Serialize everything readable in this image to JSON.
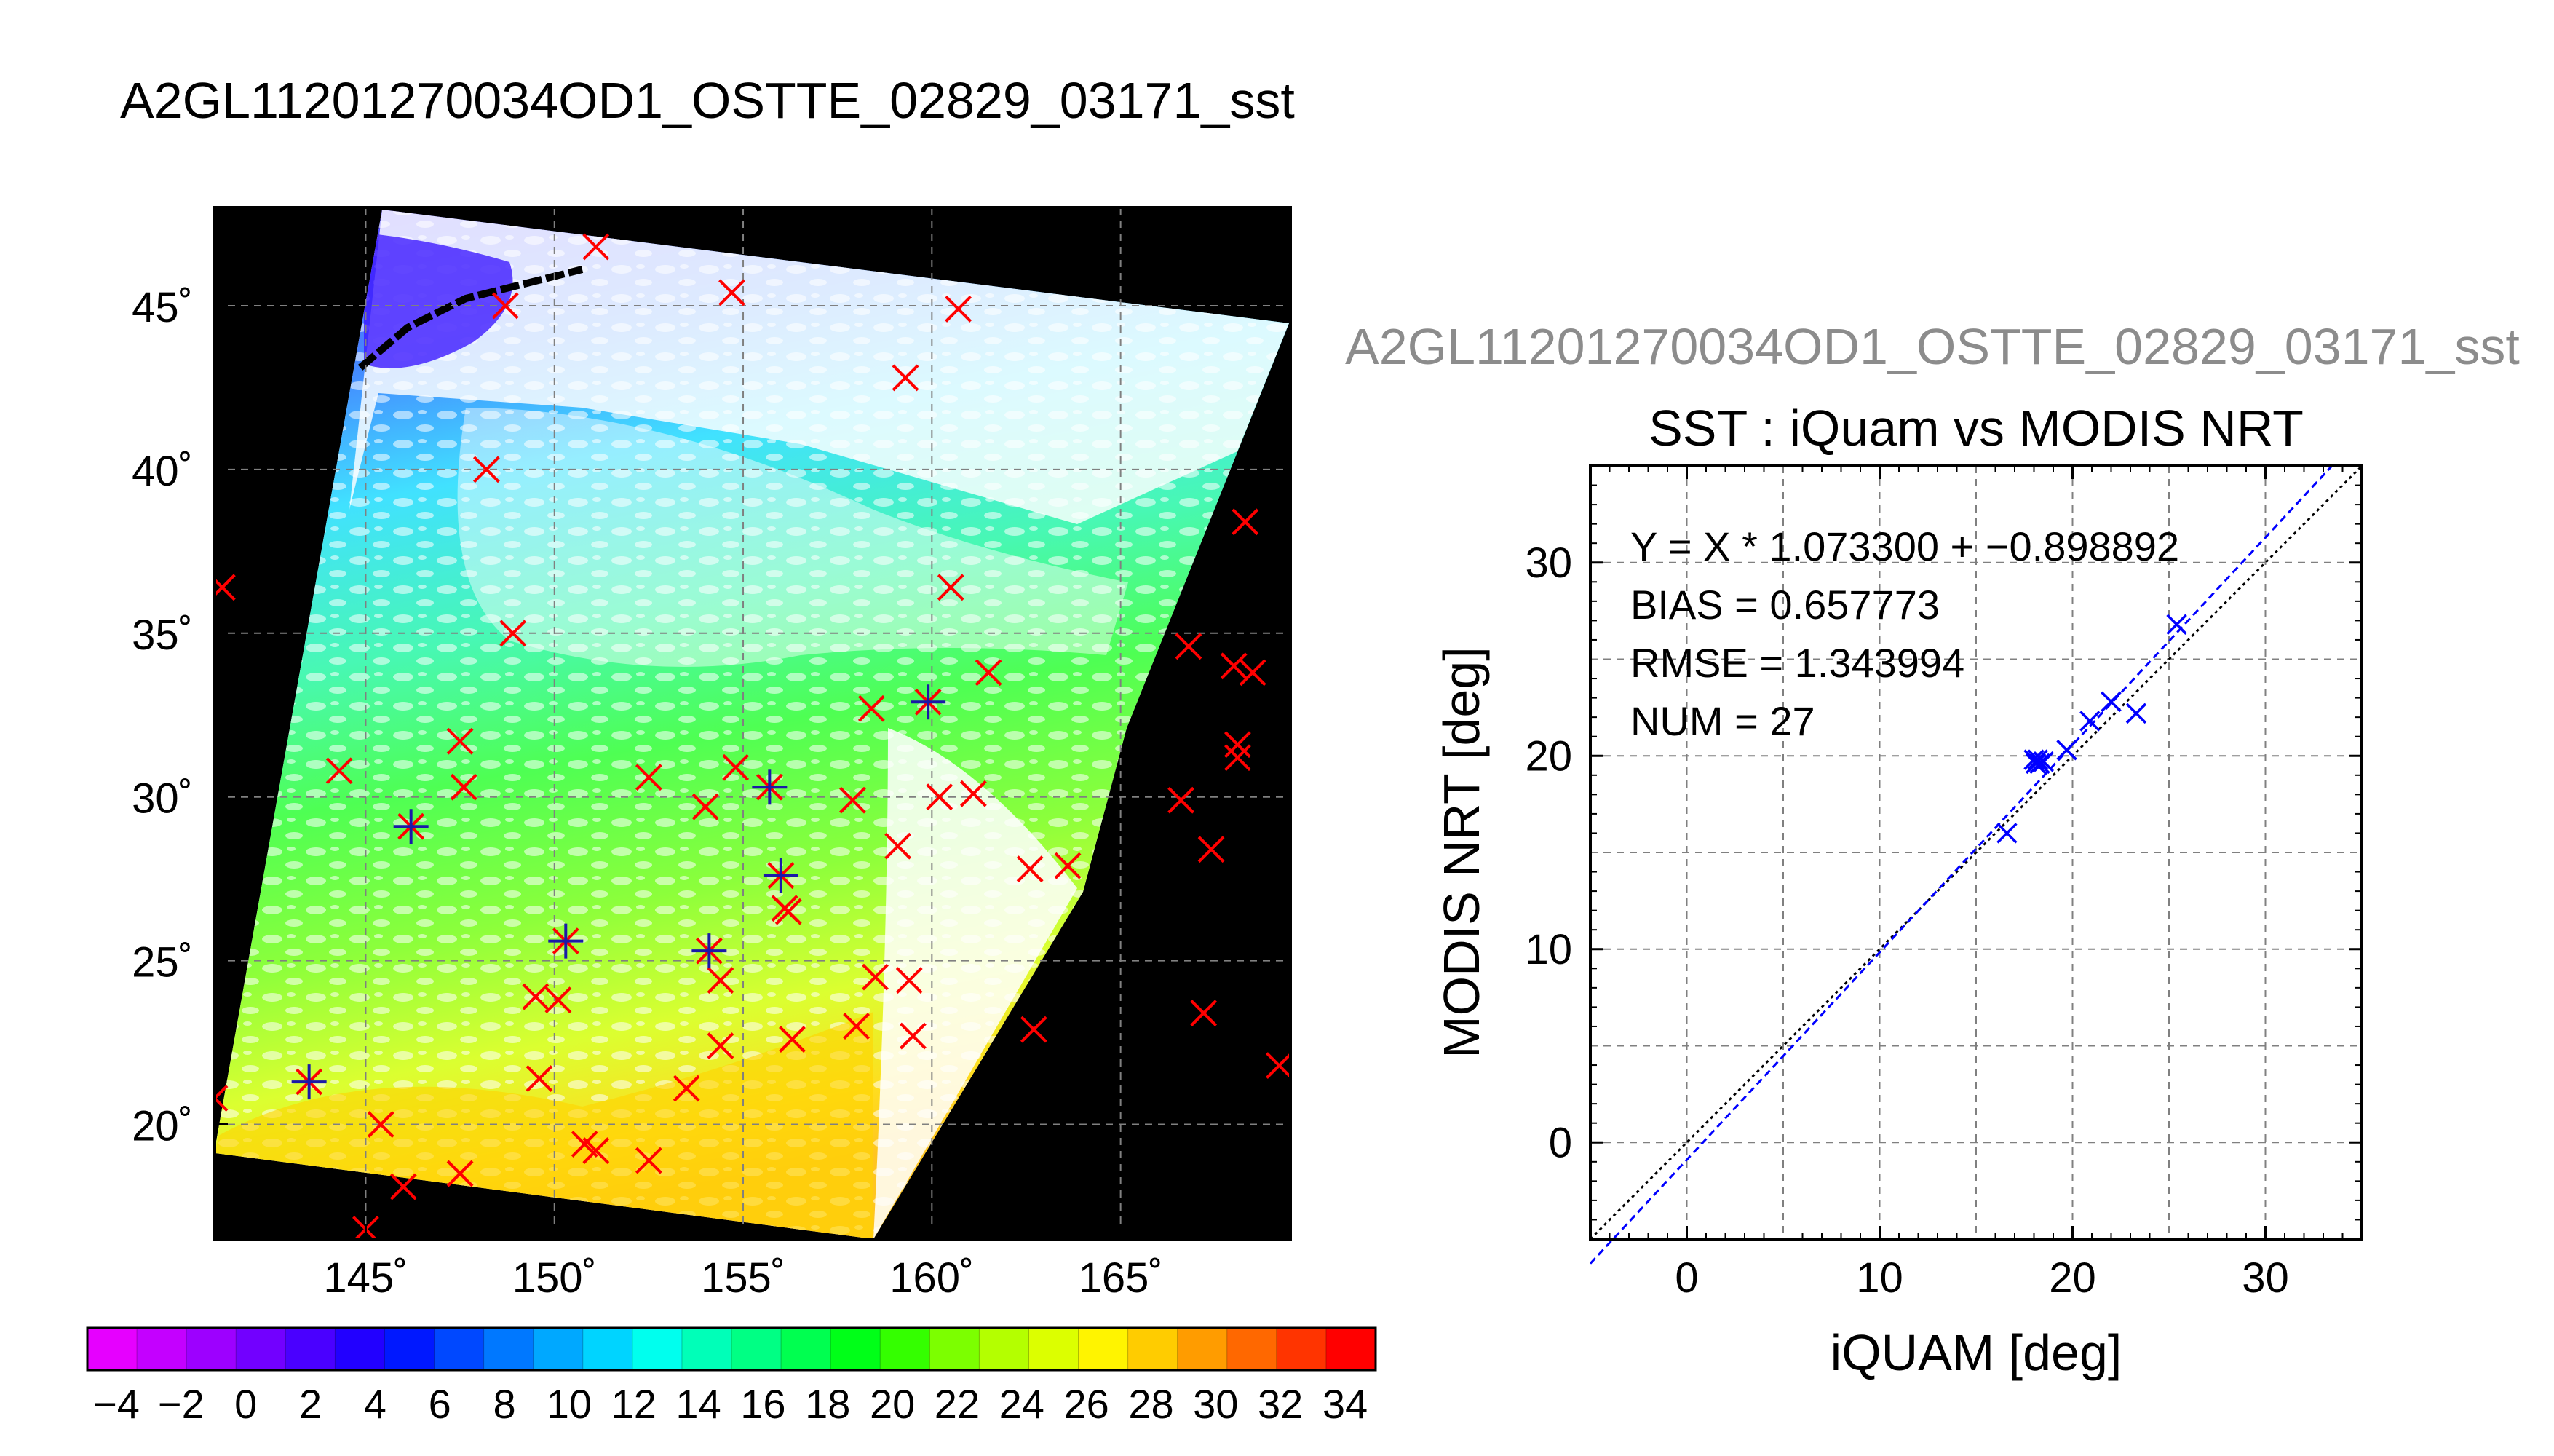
{
  "page_title": "A2GL11201270034OD1_OSTTE_02829_03171_sst",
  "right_panel_title": "A2GL11201270034OD1_OSTTE_02829_03171_sst",
  "colors": {
    "scatter_marker": "#0000ff",
    "fit_line": "#0000ff",
    "identity_line": "#000000",
    "map_cross_red": "#ff0000",
    "map_cross_blue": "#1a1aa8",
    "map_background": "#000000",
    "grid": "#808080"
  },
  "chart_data": [
    {
      "type": "scatter",
      "kind": "map",
      "description_key": "sst-map",
      "xlim": [
        141,
        169.5
      ],
      "ylim": [
        16.5,
        48
      ],
      "lon_ticks": [
        145,
        150,
        155,
        160,
        165
      ],
      "lat_ticks": [
        20,
        25,
        30,
        35,
        40,
        45
      ],
      "lon_tick_labels": [
        "145˚",
        "150˚",
        "155˚",
        "160˚",
        "165˚"
      ],
      "lat_tick_labels": [
        "20˚",
        "25˚",
        "30˚",
        "35˚",
        "40˚",
        "45˚"
      ],
      "grid": true,
      "series": [
        {
          "marker": "x",
          "color": "#ff0000",
          "points": [
            [
              141.2,
              36.4
            ],
            [
              141.0,
              20.8
            ],
            [
              143.5,
              21.3
            ],
            [
              144.3,
              30.8
            ],
            [
              145.4,
              20.0
            ],
            [
              145.0,
              16.8
            ],
            [
              146.0,
              18.1
            ],
            [
              146.2,
              29.1
            ],
            [
              147.5,
              31.7
            ],
            [
              147.6,
              30.3
            ],
            [
              147.5,
              18.5
            ],
            [
              148.2,
              40.0
            ],
            [
              148.7,
              45.0
            ],
            [
              148.9,
              35.0
            ],
            [
              149.5,
              23.9
            ],
            [
              149.6,
              21.4
            ],
            [
              150.1,
              23.8
            ],
            [
              150.3,
              25.6
            ],
            [
              150.8,
              19.4
            ],
            [
              151.1,
              19.2
            ],
            [
              152.5,
              30.6
            ],
            [
              152.5,
              18.9
            ],
            [
              153.5,
              21.1
            ],
            [
              154.0,
              29.7
            ],
            [
              154.1,
              25.3
            ],
            [
              154.4,
              24.4
            ],
            [
              154.4,
              22.4
            ],
            [
              154.7,
              45.4
            ],
            [
              154.8,
              30.9
            ],
            [
              155.7,
              30.3
            ],
            [
              156.0,
              27.6
            ],
            [
              156.1,
              26.6
            ],
            [
              156.2,
              26.5
            ],
            [
              156.3,
              22.6
            ],
            [
              157.9,
              29.9
            ],
            [
              158.0,
              23.0
            ],
            [
              158.4,
              32.7
            ],
            [
              158.5,
              24.5
            ],
            [
              159.1,
              28.5
            ],
            [
              159.4,
              24.4
            ],
            [
              159.3,
              42.8
            ],
            [
              159.5,
              22.7
            ],
            [
              159.9,
              32.9
            ],
            [
              160.2,
              30.0
            ],
            [
              160.5,
              36.4
            ],
            [
              160.7,
              44.9
            ],
            [
              161.1,
              30.1
            ],
            [
              161.5,
              33.8
            ],
            [
              162.6,
              27.8
            ],
            [
              162.7,
              22.9
            ],
            [
              163.6,
              27.9
            ],
            [
              166.6,
              29.9
            ],
            [
              166.8,
              34.6
            ],
            [
              167.2,
              23.4
            ],
            [
              167.4,
              28.4
            ],
            [
              168.0,
              34.0
            ],
            [
              168.1,
              31.6
            ],
            [
              168.1,
              31.2
            ],
            [
              168.3,
              38.4
            ],
            [
              168.5,
              33.8
            ],
            [
              169.2,
              21.8
            ],
            [
              151.1,
              46.8
            ]
          ]
        },
        {
          "marker": "+",
          "color": "#1a1aa8",
          "points": [
            [
              143.5,
              21.3
            ],
            [
              146.2,
              29.1
            ],
            [
              150.3,
              25.6
            ],
            [
              154.1,
              25.3
            ],
            [
              155.7,
              30.3
            ],
            [
              156.0,
              27.6
            ],
            [
              159.9,
              32.9
            ]
          ]
        }
      ]
    },
    {
      "type": "scatter",
      "title": "SST : iQuam vs MODIS NRT",
      "xlabel": "iQUAM [deg]",
      "ylabel": "MODIS NRT [deg]",
      "xlim": [
        -5,
        35
      ],
      "ylim": [
        -5,
        35
      ],
      "x_ticks": [
        0,
        10,
        20,
        30
      ],
      "y_ticks": [
        0,
        10,
        20,
        30
      ],
      "x_minor_grid": [
        -5,
        5,
        15,
        25,
        35
      ],
      "y_minor_grid": [
        -5,
        5,
        15,
        25,
        35
      ],
      "grid": true,
      "fit": {
        "slope": 1.0733,
        "intercept": -0.898892
      },
      "annotations": [
        "Y = X * 1.073300 + −0.898892",
        "BIAS = 0.657773",
        "RMSE = 1.343994",
        "NUM = 27"
      ],
      "points": [
        [
          16.6,
          16.0
        ],
        [
          18.0,
          19.8
        ],
        [
          18.1,
          19.6
        ],
        [
          18.2,
          19.8
        ],
        [
          18.3,
          19.6
        ],
        [
          18.5,
          19.7
        ],
        [
          19.7,
          20.3
        ],
        [
          20.9,
          21.8
        ],
        [
          22.0,
          22.8
        ],
        [
          23.3,
          22.2
        ],
        [
          25.4,
          26.8
        ]
      ]
    }
  ],
  "colorbar": {
    "tick_labels": [
      "−4",
      "−2",
      "0",
      "2",
      "4",
      "6",
      "8",
      "10",
      "12",
      "14",
      "16",
      "18",
      "20",
      "22",
      "24",
      "26",
      "28",
      "30",
      "32",
      "34"
    ],
    "segments": [
      "#e600ff",
      "#c400ff",
      "#9d00ff",
      "#7200ff",
      "#4a00ff",
      "#2200ff",
      "#0018ff",
      "#0048ff",
      "#0078ff",
      "#00a8ff",
      "#00d4ff",
      "#00ffee",
      "#00ffb8",
      "#00ff84",
      "#00ff50",
      "#00ff18",
      "#34ff00",
      "#7cff00",
      "#b4ff00",
      "#dcff00",
      "#fff400",
      "#ffcc00",
      "#ff9c00",
      "#ff6800",
      "#ff3400",
      "#ff0000"
    ]
  }
}
